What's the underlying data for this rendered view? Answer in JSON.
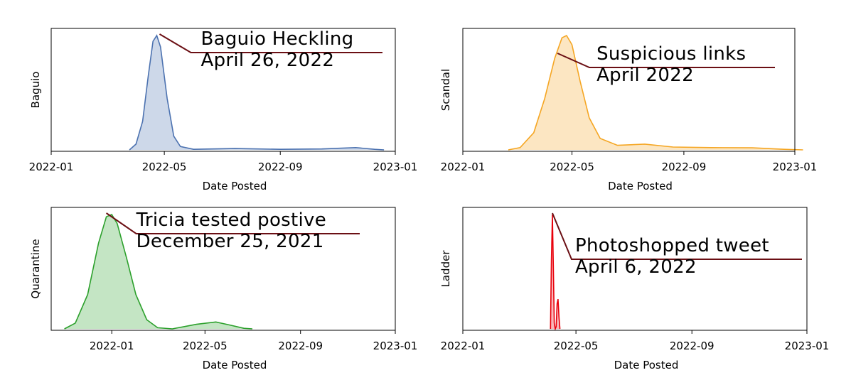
{
  "chart_data": [
    {
      "type": "area",
      "ylabel": "Baguio",
      "xlabel": "Date Posted",
      "x_ticks": [
        "2022-01",
        "2022-05",
        "2022-09",
        "2023-01"
      ],
      "x_range": [
        "2022-01-01",
        "2023-01-01"
      ],
      "color": "#4c72b0",
      "density": [
        [
          "2022-03-25",
          0.0
        ],
        [
          "2022-04-01",
          0.05
        ],
        [
          "2022-04-08",
          0.25
        ],
        [
          "2022-04-14",
          0.65
        ],
        [
          "2022-04-19",
          0.95
        ],
        [
          "2022-04-23",
          1.0
        ],
        [
          "2022-04-27",
          0.9
        ],
        [
          "2022-05-04",
          0.45
        ],
        [
          "2022-05-11",
          0.12
        ],
        [
          "2022-05-18",
          0.03
        ],
        [
          "2022-06-01",
          0.005
        ],
        [
          "2022-07-15",
          0.012
        ],
        [
          "2022-09-01",
          0.005
        ],
        [
          "2022-10-15",
          0.008
        ],
        [
          "2022-11-20",
          0.02
        ],
        [
          "2022-12-10",
          0.005
        ],
        [
          "2022-12-20",
          0.0
        ]
      ],
      "annotation": {
        "lines": [
          "Baguio Heckling",
          "April 26, 2022"
        ],
        "date": "2022-04-26"
      }
    },
    {
      "type": "area",
      "ylabel": "Scandal",
      "xlabel": "Date Posted",
      "x_ticks": [
        "2022-01",
        "2022-05",
        "2022-09",
        "2023-01"
      ],
      "x_range": [
        "2022-01-01",
        "2023-01-01"
      ],
      "color": "#f5a623",
      "density": [
        [
          "2022-02-20",
          0.0
        ],
        [
          "2022-03-05",
          0.02
        ],
        [
          "2022-03-20",
          0.15
        ],
        [
          "2022-04-01",
          0.45
        ],
        [
          "2022-04-12",
          0.8
        ],
        [
          "2022-04-20",
          0.98
        ],
        [
          "2022-04-25",
          1.0
        ],
        [
          "2022-05-01",
          0.92
        ],
        [
          "2022-05-10",
          0.6
        ],
        [
          "2022-05-20",
          0.28
        ],
        [
          "2022-06-01",
          0.1
        ],
        [
          "2022-06-20",
          0.04
        ],
        [
          "2022-07-20",
          0.05
        ],
        [
          "2022-08-20",
          0.025
        ],
        [
          "2022-10-01",
          0.02
        ],
        [
          "2022-11-15",
          0.018
        ],
        [
          "2022-12-20",
          0.005
        ],
        [
          "2023-01-10",
          0.0
        ]
      ],
      "annotation": {
        "lines": [
          "Suspicious links",
          "April 2022"
        ],
        "date": "2022-04-15"
      }
    },
    {
      "type": "area",
      "ylabel": "Quarantine",
      "xlabel": "Date Posted",
      "x_ticks": [
        "2022-01",
        "2022-05",
        "2022-09",
        "2023-01"
      ],
      "x_range": [
        "2021-10-15",
        "2023-01-01"
      ],
      "color": "#2ca02c",
      "density": [
        [
          "2021-11-01",
          0.0
        ],
        [
          "2021-11-15",
          0.05
        ],
        [
          "2021-12-01",
          0.3
        ],
        [
          "2021-12-15",
          0.75
        ],
        [
          "2021-12-25",
          0.98
        ],
        [
          "2022-01-01",
          1.0
        ],
        [
          "2022-01-08",
          0.92
        ],
        [
          "2022-01-20",
          0.62
        ],
        [
          "2022-02-01",
          0.3
        ],
        [
          "2022-02-15",
          0.08
        ],
        [
          "2022-03-01",
          0.01
        ],
        [
          "2022-03-20",
          0.0
        ],
        [
          "2022-04-20",
          0.04
        ],
        [
          "2022-05-15",
          0.06
        ],
        [
          "2022-06-01",
          0.035
        ],
        [
          "2022-06-20",
          0.005
        ],
        [
          "2022-07-01",
          0.0
        ]
      ],
      "annotation": {
        "lines": [
          "Tricia tested postive",
          "December 25, 2021"
        ],
        "date": "2021-12-25"
      }
    },
    {
      "type": "area",
      "ylabel": "Ladder",
      "xlabel": "Date Posted",
      "x_ticks": [
        "2022-01",
        "2022-05",
        "2022-09",
        "2023-01"
      ],
      "x_range": [
        "2022-01-01",
        "2023-01-01"
      ],
      "color": "#e8000b",
      "density": [
        [
          "2022-04-04",
          0.0
        ],
        [
          "2022-04-05",
          0.6
        ],
        [
          "2022-04-06",
          1.0
        ],
        [
          "2022-04-07",
          0.55
        ],
        [
          "2022-04-08",
          0.05
        ],
        [
          "2022-04-09",
          0.0
        ],
        [
          "2022-04-10",
          0.02
        ],
        [
          "2022-04-11",
          0.22
        ],
        [
          "2022-04-12",
          0.26
        ],
        [
          "2022-04-13",
          0.1
        ],
        [
          "2022-04-14",
          0.0
        ]
      ],
      "annotation": {
        "lines": [
          "Photoshopped tweet",
          "April 6, 2022"
        ],
        "date": "2022-04-06"
      }
    }
  ]
}
